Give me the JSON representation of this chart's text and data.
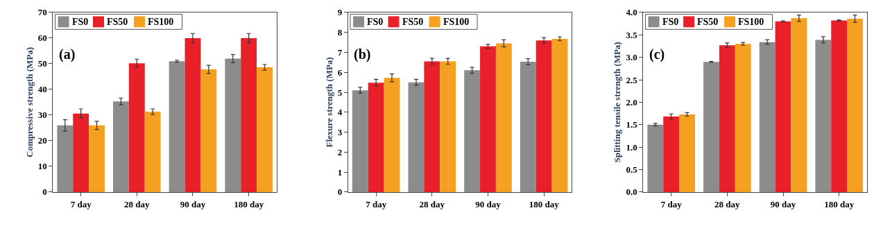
{
  "chart_data": [
    {
      "type": "bar",
      "ylabel": "Compressive strength (MPa)",
      "categories": [
        "7 day",
        "28 day",
        "90 day",
        "180 day"
      ],
      "ylim": [
        0,
        70
      ],
      "yticks": [
        0,
        10,
        20,
        30,
        40,
        50,
        60,
        70
      ],
      "legend": "top left",
      "annotations": [
        "(a)"
      ],
      "series": [
        {
          "name": "FS0",
          "color": "#8c8c8c",
          "values": [
            26,
            35.3,
            51,
            52
          ],
          "errors": [
            2.2,
            1.3,
            0.4,
            1.6
          ]
        },
        {
          "name": "FS50",
          "color": "#e8202a",
          "values": [
            30.6,
            50.2,
            60,
            60
          ],
          "errors": [
            1.8,
            1.6,
            1.8,
            1.8
          ]
        },
        {
          "name": "FS100",
          "color": "#f5a020",
          "values": [
            26,
            31.3,
            47.8,
            48.6
          ],
          "errors": [
            1.6,
            1.1,
            1.6,
            1.1
          ]
        }
      ]
    },
    {
      "type": "bar",
      "ylabel": "Flexure strength (MPa)",
      "categories": [
        "7 day",
        "28 day",
        "90 day",
        "180 day"
      ],
      "ylim": [
        0,
        9
      ],
      "yticks": [
        0,
        1,
        2,
        3,
        4,
        5,
        6,
        7,
        8,
        9
      ],
      "legend": "top left",
      "annotations": [
        "(b)"
      ],
      "series": [
        {
          "name": "FS0",
          "color": "#8c8c8c",
          "values": [
            5.1,
            5.5,
            6.1,
            6.53
          ],
          "errors": [
            0.15,
            0.15,
            0.15,
            0.15
          ]
        },
        {
          "name": "FS50",
          "color": "#e8202a",
          "values": [
            5.48,
            6.55,
            7.3,
            7.6
          ],
          "errors": [
            0.17,
            0.15,
            0.1,
            0.13
          ]
        },
        {
          "name": "FS100",
          "color": "#f5a020",
          "values": [
            5.72,
            6.55,
            7.45,
            7.68
          ],
          "errors": [
            0.2,
            0.15,
            0.18,
            0.1
          ]
        }
      ]
    },
    {
      "type": "bar",
      "ylabel": "Splitting tensile strength (MPa)",
      "categories": [
        "7 day",
        "28 day",
        "90 day",
        "180 day"
      ],
      "ylim": [
        0,
        4
      ],
      "yticks": [
        "0.0",
        0.5,
        "1.0",
        1.5,
        "2.0",
        2.5,
        "3.0",
        3.5,
        "4.0"
      ],
      "legend": "top left",
      "annotations": [
        "(c)"
      ],
      "series": [
        {
          "name": "FS0",
          "color": "#8c8c8c",
          "values": [
            1.5,
            2.9,
            3.34,
            3.39
          ],
          "errors": [
            0.03,
            0.01,
            0.05,
            0.07
          ]
        },
        {
          "name": "FS50",
          "color": "#e8202a",
          "values": [
            1.68,
            3.27,
            3.8,
            3.82
          ],
          "errors": [
            0.06,
            0.05,
            0.01,
            0.01
          ]
        },
        {
          "name": "FS100",
          "color": "#f5a020",
          "values": [
            1.73,
            3.3,
            3.87,
            3.86
          ],
          "errors": [
            0.04,
            0.03,
            0.07,
            0.08
          ]
        }
      ]
    }
  ]
}
